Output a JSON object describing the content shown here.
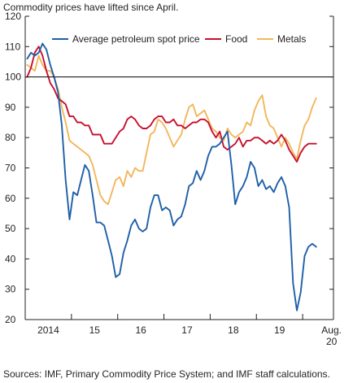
{
  "chart_data": {
    "type": "line",
    "subtitle": "Commodity prices have lifted since April.",
    "source": "Sources: IMF, Primary Commodity Price System; and IMF staff calculations.",
    "ylim": [
      20,
      120
    ],
    "y_ticks": [
      20,
      30,
      40,
      50,
      60,
      70,
      80,
      90,
      100,
      110,
      120
    ],
    "reference_line": 100,
    "x_start": "2014-01",
    "x_end": "2020-08",
    "x_tick_labels": [
      "2014",
      "15",
      "16",
      "17",
      "18",
      "19",
      "Aug.\n20"
    ],
    "legend_position": "top",
    "grid": false,
    "colors": {
      "petroleum": "#1f5fa8",
      "food": "#c8102e",
      "metals": "#f2b75c",
      "axis": "#231f20"
    },
    "series": [
      {
        "name": "Average petroleum spot price",
        "key": "petroleum",
        "values": [
          106,
          108,
          107,
          108,
          111,
          109,
          104,
          100,
          95,
          84,
          66,
          53,
          62,
          61,
          66,
          71,
          69,
          61,
          52,
          52,
          51,
          46,
          41,
          34,
          35,
          42,
          46,
          51,
          53,
          50,
          49,
          50,
          57,
          61,
          61,
          56,
          57,
          56,
          51,
          53,
          54,
          58,
          64,
          65,
          69,
          66,
          69,
          74,
          77,
          77,
          78,
          80,
          82,
          71,
          58,
          62,
          64,
          67,
          72,
          70,
          64,
          66,
          63,
          64,
          62,
          65,
          67,
          64,
          57,
          32,
          23,
          29,
          41,
          44,
          45,
          44
        ]
      },
      {
        "name": "Food",
        "key": "food",
        "values": [
          100,
          103,
          108,
          110,
          107,
          102,
          98,
          96,
          93,
          92,
          91,
          87,
          87,
          85,
          85,
          84,
          84,
          81,
          81,
          81,
          78,
          78,
          78,
          80,
          82,
          83,
          86,
          87,
          86,
          84,
          83,
          83,
          84,
          86,
          87,
          87,
          85,
          85,
          86,
          84,
          84,
          83,
          84,
          85,
          85,
          86,
          86,
          85,
          82,
          80,
          82,
          77,
          76,
          77,
          78,
          80,
          77,
          79,
          79,
          80,
          80,
          79,
          78,
          79,
          78,
          79,
          81,
          79,
          76,
          74,
          72,
          75,
          77,
          78,
          78,
          78
        ]
      },
      {
        "name": "Metals",
        "key": "metals",
        "values": [
          104,
          103,
          102,
          107,
          104,
          102,
          102,
          100,
          96,
          90,
          85,
          79,
          78,
          77,
          76,
          75,
          74,
          71,
          66,
          61,
          59,
          58,
          62,
          66,
          67,
          64,
          69,
          67,
          70,
          69,
          69,
          75,
          81,
          82,
          86,
          85,
          83,
          80,
          77,
          79,
          81,
          86,
          90,
          91,
          87,
          88,
          89,
          86,
          83,
          82,
          80,
          79,
          83,
          81,
          80,
          81,
          82,
          85,
          84,
          89,
          92,
          94,
          87,
          84,
          83,
          80,
          77,
          80,
          78,
          75,
          73,
          79,
          84,
          86,
          90,
          93
        ]
      }
    ]
  }
}
